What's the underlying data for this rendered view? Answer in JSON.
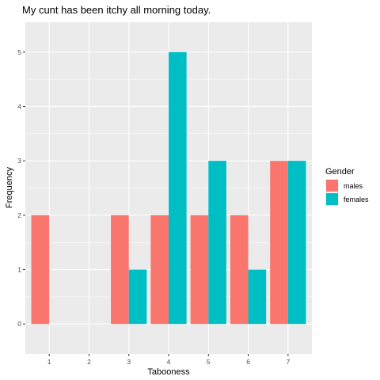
{
  "chart_data": {
    "type": "bar",
    "title": "My cunt has been itchy all morning today.",
    "xlabel": "Tabooness",
    "ylabel": "Frequency",
    "categories": [
      "1",
      "2",
      "3",
      "4",
      "5",
      "6",
      "7"
    ],
    "yticks": [
      0,
      1,
      2,
      3,
      4,
      5
    ],
    "ylim": [
      -0.55,
      5.55
    ],
    "grid": true,
    "legend_placement": "right",
    "legend_title": "Gender",
    "series": [
      {
        "name": "males",
        "color": "#F8766D",
        "values": [
          2,
          0,
          2,
          2,
          2,
          2,
          3
        ]
      },
      {
        "name": "females",
        "color": "#00BFC4",
        "values": [
          0,
          0,
          1,
          5,
          3,
          1,
          3
        ]
      }
    ]
  }
}
